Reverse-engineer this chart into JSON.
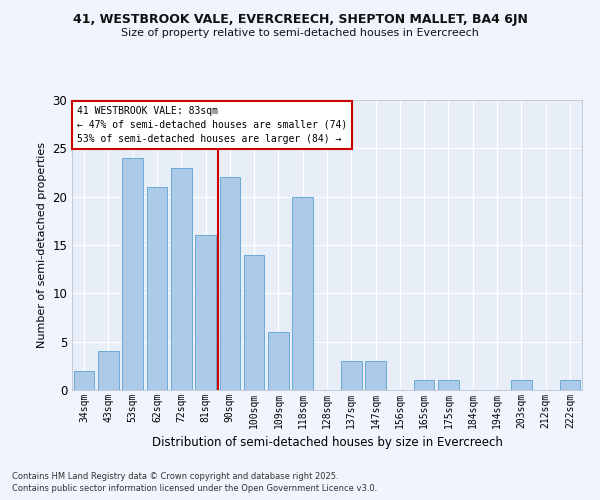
{
  "title1": "41, WESTBROOK VALE, EVERCREECH, SHEPTON MALLET, BA4 6JN",
  "title2": "Size of property relative to semi-detached houses in Evercreech",
  "xlabel": "Distribution of semi-detached houses by size in Evercreech",
  "ylabel": "Number of semi-detached properties",
  "categories": [
    "34sqm",
    "43sqm",
    "53sqm",
    "62sqm",
    "72sqm",
    "81sqm",
    "90sqm",
    "100sqm",
    "109sqm",
    "118sqm",
    "128sqm",
    "137sqm",
    "147sqm",
    "156sqm",
    "165sqm",
    "175sqm",
    "184sqm",
    "194sqm",
    "203sqm",
    "212sqm",
    "222sqm"
  ],
  "values": [
    2,
    4,
    24,
    21,
    23,
    16,
    22,
    14,
    6,
    20,
    0,
    3,
    3,
    0,
    1,
    1,
    0,
    0,
    1,
    0,
    1
  ],
  "bar_color": "#adc9e8",
  "bar_edge_color": "#6aaad4",
  "reference_line_x": 5.5,
  "annotation_title": "41 WESTBROOK VALE: 83sqm",
  "annotation_line1": "← 47% of semi-detached houses are smaller (74)",
  "annotation_line2": "53% of semi-detached houses are larger (84) →",
  "annotation_box_color": "#ffffff",
  "annotation_box_edge": "#cc0000",
  "ref_line_color": "#cc0000",
  "ylim": [
    0,
    30
  ],
  "yticks": [
    0,
    5,
    10,
    15,
    20,
    25,
    30
  ],
  "plot_bg_color": "#e8eef8",
  "fig_bg_color": "#f0f4fc",
  "grid_color": "#ffffff",
  "footer1": "Contains HM Land Registry data © Crown copyright and database right 2025.",
  "footer2": "Contains public sector information licensed under the Open Government Licence v3.0."
}
